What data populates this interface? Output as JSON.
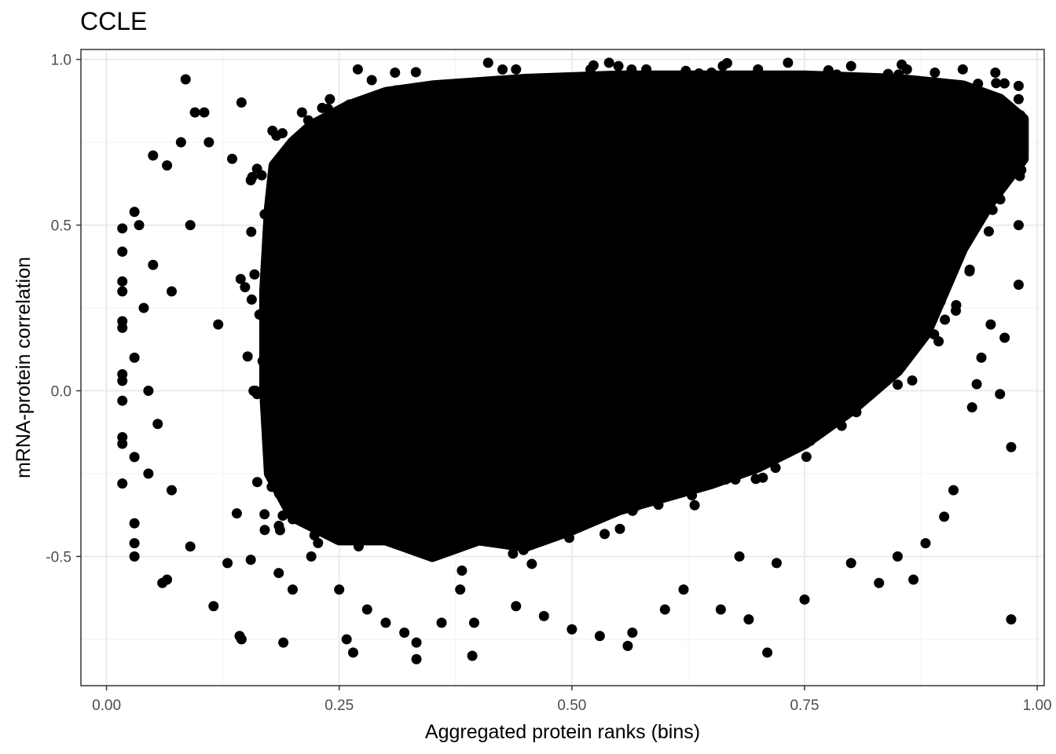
{
  "chart_data": {
    "type": "scatter",
    "title": "CCLE",
    "xlabel": "Aggregated protein ranks (bins)",
    "ylabel": "mRNA-protein correlation",
    "xlim": [
      -0.0275,
      1.0075
    ],
    "ylim": [
      -0.89,
      1.03
    ],
    "x_ticks": [
      0,
      0.25,
      0.5,
      0.75,
      1
    ],
    "x_tick_labels": [
      "0.00",
      "0.25",
      "0.50",
      "0.75",
      "1.00"
    ],
    "y_ticks": [
      -0.5,
      0,
      0.5,
      1
    ],
    "y_tick_labels": [
      "-0.5",
      "0.0",
      "0.5",
      "1.0"
    ],
    "grid": true,
    "theme": "bw",
    "point_color": "#000000",
    "dense_region": [
      [
        0.175,
        -0.25
      ],
      [
        0.2,
        -0.38
      ],
      [
        0.25,
        -0.45
      ],
      [
        0.3,
        -0.45
      ],
      [
        0.35,
        -0.5
      ],
      [
        0.4,
        -0.45
      ],
      [
        0.45,
        -0.47
      ],
      [
        0.5,
        -0.42
      ],
      [
        0.55,
        -0.36
      ],
      [
        0.6,
        -0.32
      ],
      [
        0.65,
        -0.28
      ],
      [
        0.7,
        -0.23
      ],
      [
        0.75,
        -0.16
      ],
      [
        0.8,
        -0.06
      ],
      [
        0.85,
        0.06
      ],
      [
        0.88,
        0.17
      ],
      [
        0.9,
        0.3
      ],
      [
        0.92,
        0.43
      ],
      [
        0.95,
        0.57
      ],
      [
        0.985,
        0.7
      ],
      [
        0.985,
        0.82
      ],
      [
        0.96,
        0.88
      ],
      [
        0.92,
        0.92
      ],
      [
        0.85,
        0.94
      ],
      [
        0.75,
        0.95
      ],
      [
        0.65,
        0.95
      ],
      [
        0.55,
        0.95
      ],
      [
        0.45,
        0.94
      ],
      [
        0.35,
        0.92
      ],
      [
        0.3,
        0.9
      ],
      [
        0.26,
        0.86
      ],
      [
        0.22,
        0.8
      ],
      [
        0.2,
        0.75
      ],
      [
        0.18,
        0.68
      ],
      [
        0.175,
        0.55
      ],
      [
        0.17,
        0.3
      ],
      [
        0.17,
        0.0
      ]
    ],
    "points": [
      [
        0.017,
        0.49
      ],
      [
        0.017,
        0.42
      ],
      [
        0.017,
        0.33
      ],
      [
        0.017,
        0.3
      ],
      [
        0.017,
        0.21
      ],
      [
        0.017,
        0.19
      ],
      [
        0.017,
        0.05
      ],
      [
        0.017,
        0.03
      ],
      [
        0.017,
        -0.03
      ],
      [
        0.017,
        -0.14
      ],
      [
        0.017,
        -0.16
      ],
      [
        0.017,
        -0.28
      ],
      [
        0.03,
        0.54
      ],
      [
        0.03,
        0.1
      ],
      [
        0.03,
        -0.2
      ],
      [
        0.03,
        -0.4
      ],
      [
        0.03,
        -0.46
      ],
      [
        0.03,
        -0.5
      ],
      [
        0.035,
        0.5
      ],
      [
        0.04,
        0.25
      ],
      [
        0.045,
        0.0
      ],
      [
        0.045,
        -0.25
      ],
      [
        0.05,
        0.71
      ],
      [
        0.05,
        0.38
      ],
      [
        0.055,
        -0.1
      ],
      [
        0.06,
        -0.58
      ],
      [
        0.065,
        -0.57
      ],
      [
        0.065,
        0.68
      ],
      [
        0.07,
        0.3
      ],
      [
        0.07,
        -0.3
      ],
      [
        0.08,
        0.75
      ],
      [
        0.085,
        0.94
      ],
      [
        0.09,
        -0.47
      ],
      [
        0.09,
        0.5
      ],
      [
        0.095,
        0.84
      ],
      [
        0.105,
        0.84
      ],
      [
        0.11,
        0.75
      ],
      [
        0.115,
        -0.65
      ],
      [
        0.12,
        0.2
      ],
      [
        0.13,
        -0.52
      ],
      [
        0.135,
        0.7
      ],
      [
        0.14,
        -0.37
      ],
      [
        0.143,
        -0.74
      ],
      [
        0.145,
        -0.75
      ],
      [
        0.145,
        0.87
      ],
      [
        0.155,
        -0.51
      ],
      [
        0.16,
        0.0
      ],
      [
        0.17,
        -0.42
      ],
      [
        0.175,
        0.3
      ],
      [
        0.185,
        -0.55
      ],
      [
        0.19,
        -0.76
      ],
      [
        0.2,
        -0.6
      ],
      [
        0.21,
        0.84
      ],
      [
        0.22,
        -0.5
      ],
      [
        0.24,
        0.88
      ],
      [
        0.25,
        -0.6
      ],
      [
        0.258,
        -0.75
      ],
      [
        0.265,
        -0.79
      ],
      [
        0.27,
        0.97
      ],
      [
        0.28,
        -0.66
      ],
      [
        0.3,
        -0.7
      ],
      [
        0.31,
        0.96
      ],
      [
        0.32,
        -0.73
      ],
      [
        0.333,
        -0.81
      ],
      [
        0.333,
        -0.76
      ],
      [
        0.36,
        -0.7
      ],
      [
        0.38,
        -0.6
      ],
      [
        0.393,
        -0.8
      ],
      [
        0.395,
        -0.7
      ],
      [
        0.41,
        0.99
      ],
      [
        0.44,
        0.97
      ],
      [
        0.44,
        -0.65
      ],
      [
        0.47,
        -0.68
      ],
      [
        0.5,
        -0.72
      ],
      [
        0.52,
        0.97
      ],
      [
        0.53,
        -0.74
      ],
      [
        0.55,
        0.98
      ],
      [
        0.56,
        -0.77
      ],
      [
        0.565,
        -0.73
      ],
      [
        0.58,
        0.97
      ],
      [
        0.6,
        -0.66
      ],
      [
        0.62,
        -0.6
      ],
      [
        0.65,
        0.96
      ],
      [
        0.66,
        -0.66
      ],
      [
        0.68,
        -0.5
      ],
      [
        0.69,
        -0.69
      ],
      [
        0.7,
        0.97
      ],
      [
        0.71,
        -0.79
      ],
      [
        0.72,
        -0.52
      ],
      [
        0.75,
        -0.63
      ],
      [
        0.77,
        0.95
      ],
      [
        0.8,
        0.98
      ],
      [
        0.8,
        -0.52
      ],
      [
        0.83,
        -0.58
      ],
      [
        0.85,
        -0.5
      ],
      [
        0.86,
        0.97
      ],
      [
        0.867,
        -0.57
      ],
      [
        0.88,
        -0.46
      ],
      [
        0.89,
        0.96
      ],
      [
        0.9,
        -0.38
      ],
      [
        0.91,
        -0.3
      ],
      [
        0.92,
        0.97
      ],
      [
        0.93,
        -0.05
      ],
      [
        0.935,
        0.02
      ],
      [
        0.94,
        0.1
      ],
      [
        0.95,
        0.2
      ],
      [
        0.955,
        0.96
      ],
      [
        0.96,
        -0.01
      ],
      [
        0.965,
        0.16
      ],
      [
        0.972,
        -0.17
      ],
      [
        0.972,
        -0.69
      ],
      [
        0.98,
        0.32
      ],
      [
        0.98,
        0.5
      ],
      [
        0.98,
        0.92
      ],
      [
        0.98,
        0.88
      ],
      [
        0.98,
        0.68
      ]
    ]
  }
}
